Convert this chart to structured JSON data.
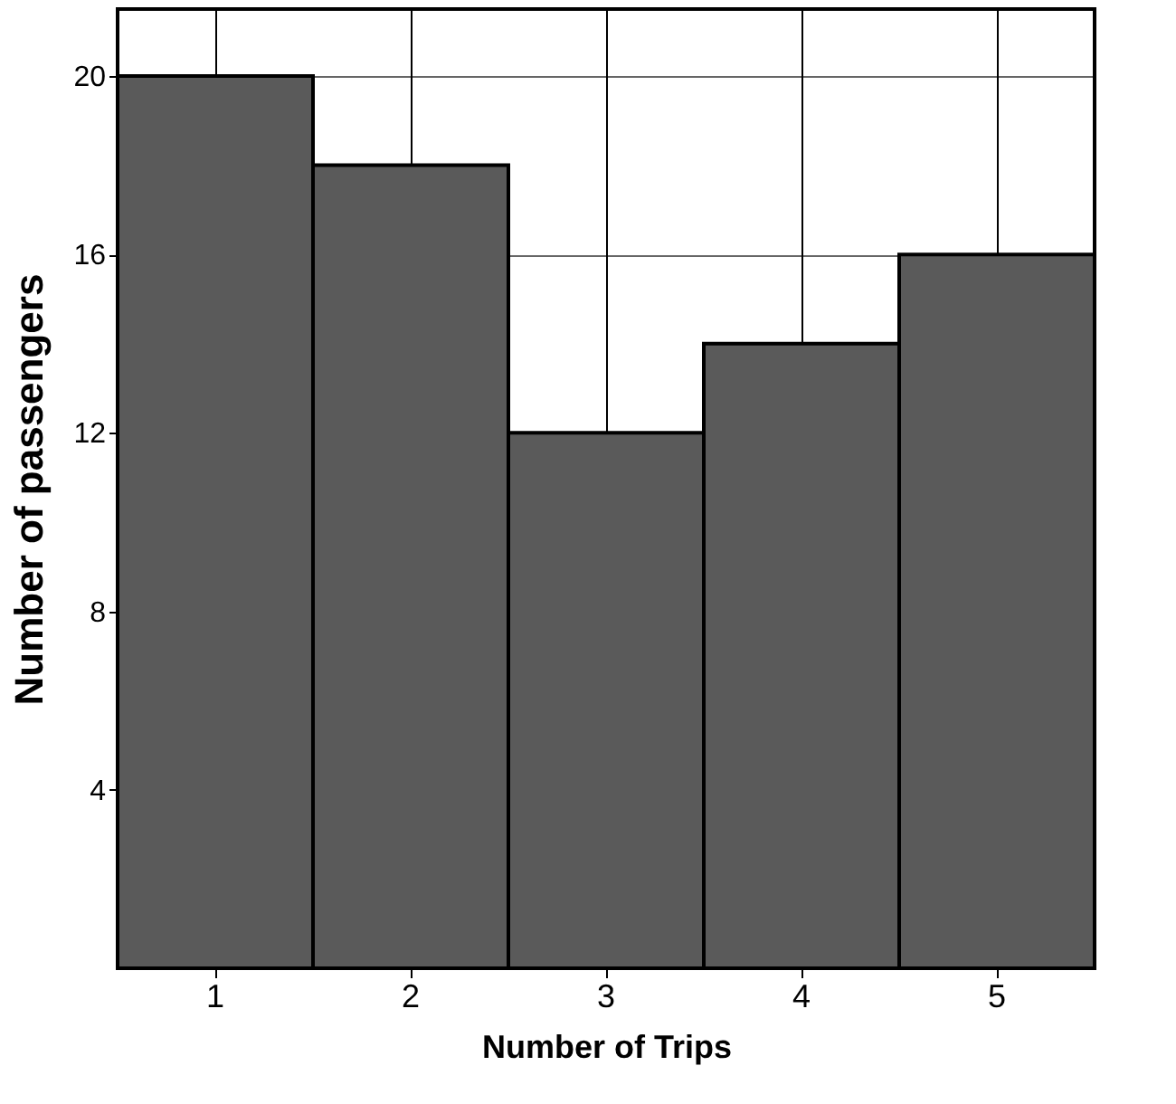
{
  "chart_data": {
    "type": "bar",
    "xlabel": "Number of Trips",
    "ylabel": "Number of passengers",
    "categories": [
      "1",
      "2",
      "3",
      "4",
      "5"
    ],
    "values": [
      20,
      18,
      12,
      14,
      16
    ],
    "color": "#5a5a5a",
    "ylim": [
      0,
      21.5
    ],
    "yticks": [
      4,
      8,
      12,
      16,
      20
    ],
    "grid": true
  }
}
